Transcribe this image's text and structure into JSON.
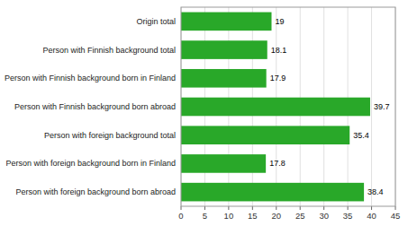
{
  "chart_data": {
    "type": "bar",
    "orientation": "horizontal",
    "categories": [
      "Person with foreign background born abroad",
      "Person with foreign background born in Finland",
      "Person with foreign background total",
      "Person with Finnish background born abroad",
      "Person with Finnish background born in Finland",
      "Person with Finnish background total",
      "Origin total"
    ],
    "values": [
      38.4,
      17.8,
      35.4,
      39.7,
      17.9,
      18.1,
      19
    ],
    "color": "#29a829",
    "xlim": [
      0,
      45
    ],
    "xticks": [
      0,
      5,
      10,
      15,
      20,
      25,
      30,
      35,
      40,
      45
    ],
    "grid": true,
    "data_labels": true
  }
}
